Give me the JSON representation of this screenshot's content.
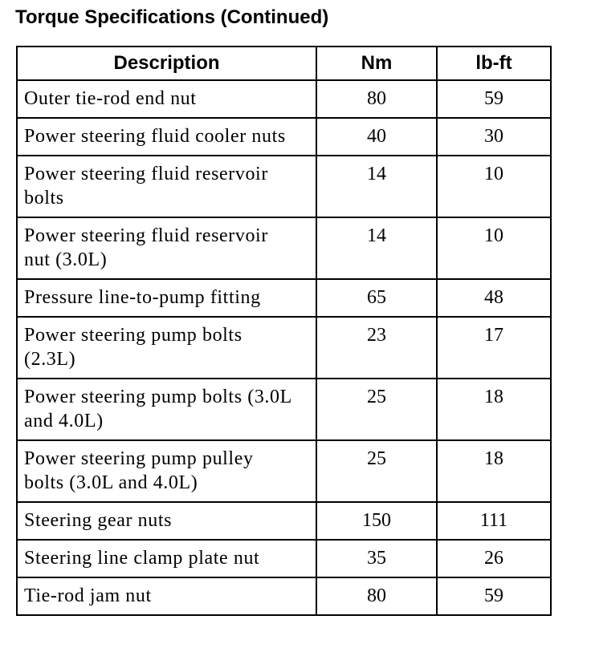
{
  "title": "Torque Specifications (Continued)",
  "table": {
    "header": [
      "Description",
      "Nm",
      "lb-ft"
    ],
    "rows": [
      [
        "Outer tie-rod end nut",
        80,
        59
      ],
      [
        "Power steering fluid cooler nuts",
        40,
        30
      ],
      [
        "Power steering fluid reservoir bolts",
        14,
        10
      ],
      [
        "Power steering fluid reservoir nut (3.0L)",
        14,
        10
      ],
      [
        "Pressure line-to-pump fitting",
        65,
        48
      ],
      [
        "Power steering pump bolts (2.3L)",
        23,
        17
      ],
      [
        "Power steering pump bolts (3.0L and 4.0L)",
        25,
        18
      ],
      [
        "Power steering pump pulley bolts (3.0L and 4.0L)",
        25,
        18
      ],
      [
        "Steering gear nuts",
        150,
        111
      ],
      [
        "Steering line clamp plate nut",
        35,
        26
      ],
      [
        "Tie-rod jam nut",
        80,
        59
      ]
    ]
  }
}
